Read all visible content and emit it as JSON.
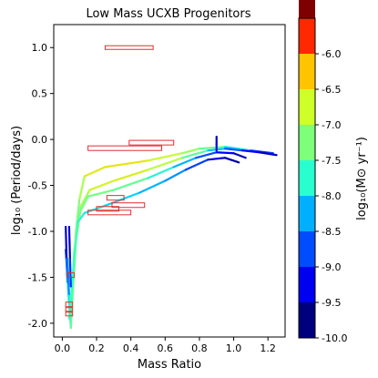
{
  "chart_data": {
    "type": "line",
    "title": "Low Mass UCXB Progenitors",
    "xlabel": "Mass Ratio",
    "ylabel": "log₁₀ (Period/days)",
    "xlim": [
      -0.05,
      1.3
    ],
    "ylim": [
      -2.15,
      1.25
    ],
    "x_ticks": [
      "0.0",
      "0.2",
      "0.4",
      "0.6",
      "0.8",
      "1.0",
      "1.2"
    ],
    "x_tick_values": [
      0.0,
      0.2,
      0.4,
      0.6,
      0.8,
      1.0,
      1.2
    ],
    "y_ticks": [
      "-2.0",
      "-1.5",
      "-1.0",
      "-0.5",
      "0.0",
      "0.5",
      "1.0"
    ],
    "y_tick_values": [
      -2.0,
      -1.5,
      -1.0,
      -0.5,
      0.0,
      0.5,
      1.0
    ],
    "grid": false,
    "colorbar": {
      "label": "log₁₀(M⊙ yr⁻¹)",
      "range": [
        -10.0,
        -6.0
      ],
      "ticks": [
        "-6.0",
        "-6.5",
        "-7.0",
        "-7.5",
        "-8.0",
        "-8.5",
        "-9.0",
        "-9.5",
        "-10.0"
      ],
      "tick_values": [
        -6.0,
        -6.5,
        -7.0,
        -7.5,
        -8.0,
        -8.5,
        -9.0,
        -9.5,
        -10.0
      ],
      "colors": [
        "#00007f",
        "#0000ff",
        "#007fff",
        "#00d4ff",
        "#36ffc1",
        "#7dff7a",
        "#c1ff36",
        "#ffd400",
        "#ff6f00",
        "#d40000",
        "#7f0000"
      ],
      "bands": [
        {
          "from": -10.0,
          "to": -9.5,
          "color": "#00007f"
        },
        {
          "from": -9.5,
          "to": -9.0,
          "color": "#0000f1"
        },
        {
          "from": -9.0,
          "to": -8.5,
          "color": "#004cff"
        },
        {
          "from": -8.5,
          "to": -8.0,
          "color": "#00b0ff"
        },
        {
          "from": -8.0,
          "to": -7.5,
          "color": "#29ffce"
        },
        {
          "from": -7.5,
          "to": -7.0,
          "color": "#7dff7a"
        },
        {
          "from": -7.0,
          "to": -6.5,
          "color": "#ceff29"
        },
        {
          "from": -6.5,
          "to": -6.0,
          "color": "#ffc400"
        },
        {
          "from": -6.0,
          "to": -5.5,
          "color": "#ff2800"
        },
        {
          "from": -5.5,
          "to": -5.0,
          "color": "#7f0000"
        }
      ]
    },
    "observed_boxes": [
      {
        "x": [
          0.25,
          0.53
        ],
        "y": [
          0.98,
          1.02
        ]
      },
      {
        "x": [
          0.39,
          0.65
        ],
        "y": [
          -0.06,
          -0.01
        ]
      },
      {
        "x": [
          0.15,
          0.58
        ],
        "y": [
          -0.12,
          -0.07
        ]
      },
      {
        "x": [
          0.26,
          0.36
        ],
        "y": [
          -0.66,
          -0.61
        ]
      },
      {
        "x": [
          0.29,
          0.48
        ],
        "y": [
          -0.74,
          -0.69
        ]
      },
      {
        "x": [
          0.2,
          0.33
        ],
        "y": [
          -0.78,
          -0.73
        ]
      },
      {
        "x": [
          0.15,
          0.4
        ],
        "y": [
          -0.82,
          -0.77
        ]
      },
      {
        "x": [
          0.03,
          0.07
        ],
        "y": [
          -1.5,
          -1.45
        ]
      },
      {
        "x": [
          0.02,
          0.06
        ],
        "y": [
          -1.82,
          -1.77
        ]
      },
      {
        "x": [
          0.02,
          0.06
        ],
        "y": [
          -1.87,
          -1.83
        ]
      },
      {
        "x": [
          0.02,
          0.06
        ],
        "y": [
          -1.92,
          -1.88
        ]
      }
    ],
    "series": [
      {
        "points": [
          [
            0.02,
            -1.2,
            -9.8
          ],
          [
            0.03,
            -1.5,
            -9.0
          ],
          [
            0.04,
            -1.8,
            -8.5
          ],
          [
            0.05,
            -2.0,
            -8.2
          ],
          [
            0.06,
            -1.6,
            -8.0
          ],
          [
            0.08,
            -1.0,
            -8.0
          ],
          [
            0.1,
            -0.65,
            -8.0
          ],
          [
            0.13,
            -0.4,
            -7.5
          ],
          [
            0.25,
            -0.3,
            -7.3
          ],
          [
            0.5,
            -0.23,
            -7.4
          ],
          [
            0.7,
            -0.15,
            -7.7
          ],
          [
            0.8,
            -0.1,
            -8.0
          ],
          [
            0.95,
            -0.08,
            -8.3
          ],
          [
            1.1,
            -0.12,
            -9.0
          ],
          [
            1.23,
            -0.15,
            -9.8
          ]
        ]
      },
      {
        "points": [
          [
            0.03,
            -1.3,
            -9.5
          ],
          [
            0.04,
            -1.7,
            -8.8
          ],
          [
            0.05,
            -2.05,
            -8.3
          ],
          [
            0.06,
            -1.7,
            -8.0
          ],
          [
            0.08,
            -1.1,
            -8.0
          ],
          [
            0.11,
            -0.72,
            -7.9
          ],
          [
            0.16,
            -0.55,
            -7.6
          ],
          [
            0.3,
            -0.45,
            -7.4
          ],
          [
            0.5,
            -0.33,
            -7.5
          ],
          [
            0.7,
            -0.2,
            -7.8
          ],
          [
            0.85,
            -0.12,
            -8.6
          ],
          [
            0.95,
            -0.1,
            -9.2
          ],
          [
            1.05,
            -0.12,
            -9.5
          ],
          [
            1.15,
            -0.14,
            -9.7
          ],
          [
            1.25,
            -0.17,
            -9.9
          ]
        ]
      },
      {
        "points": [
          [
            0.05,
            -1.9,
            -8.4
          ],
          [
            0.07,
            -1.2,
            -8.2
          ],
          [
            0.1,
            -0.8,
            -8.0
          ],
          [
            0.15,
            -0.62,
            -8.1
          ],
          [
            0.3,
            -0.55,
            -8.0
          ],
          [
            0.5,
            -0.42,
            -8.3
          ],
          [
            0.65,
            -0.3,
            -8.7
          ],
          [
            0.78,
            -0.2,
            -9.2
          ],
          [
            0.9,
            -0.14,
            -9.5
          ],
          [
            1.0,
            -0.15,
            -9.7
          ],
          [
            1.07,
            -0.2,
            -9.9
          ]
        ]
      },
      {
        "points": [
          [
            0.04,
            -1.95,
            -8.5
          ],
          [
            0.07,
            -1.3,
            -8.3
          ],
          [
            0.09,
            -0.9,
            -8.4
          ],
          [
            0.13,
            -0.8,
            -8.6
          ],
          [
            0.25,
            -0.72,
            -8.7
          ],
          [
            0.45,
            -0.58,
            -8.9
          ],
          [
            0.6,
            -0.45,
            -9.0
          ],
          [
            0.72,
            -0.33,
            -9.2
          ],
          [
            0.85,
            -0.22,
            -9.6
          ],
          [
            0.95,
            -0.2,
            -9.8
          ],
          [
            1.03,
            -0.25,
            -9.9
          ]
        ]
      },
      {
        "points": [
          [
            0.02,
            -0.95,
            -9.9
          ],
          [
            0.025,
            -1.3,
            -9.5
          ],
          [
            0.03,
            -1.55,
            -9.0
          ],
          [
            0.035,
            -1.45,
            -9.4
          ]
        ]
      },
      {
        "points": [
          [
            0.04,
            -0.95,
            -9.9
          ],
          [
            0.045,
            -1.3,
            -9.6
          ],
          [
            0.05,
            -1.6,
            -9.3
          ]
        ]
      },
      {
        "points": [
          [
            0.9,
            0.03,
            -9.9
          ],
          [
            0.9,
            -0.05,
            -9.7
          ],
          [
            0.9,
            -0.12,
            -9.6
          ]
        ]
      }
    ]
  }
}
